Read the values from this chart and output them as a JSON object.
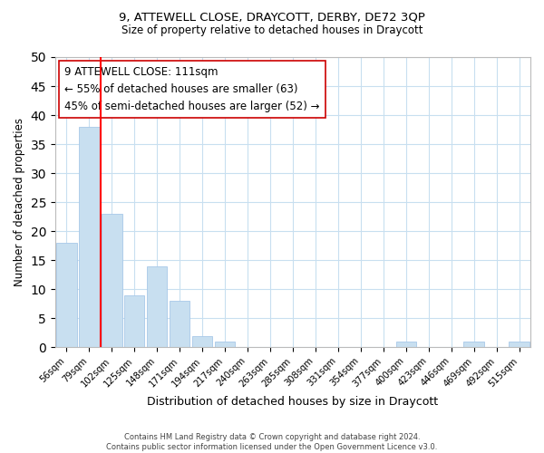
{
  "title1": "9, ATTEWELL CLOSE, DRAYCOTT, DERBY, DE72 3QP",
  "title2": "Size of property relative to detached houses in Draycott",
  "xlabel": "Distribution of detached houses by size in Draycott",
  "ylabel": "Number of detached properties",
  "bin_labels": [
    "56sqm",
    "79sqm",
    "102sqm",
    "125sqm",
    "148sqm",
    "171sqm",
    "194sqm",
    "217sqm",
    "240sqm",
    "263sqm",
    "285sqm",
    "308sqm",
    "331sqm",
    "354sqm",
    "377sqm",
    "400sqm",
    "423sqm",
    "446sqm",
    "469sqm",
    "492sqm",
    "515sqm"
  ],
  "bar_values": [
    18,
    38,
    23,
    9,
    14,
    8,
    2,
    1,
    0,
    0,
    0,
    0,
    0,
    0,
    0,
    1,
    0,
    0,
    1,
    0,
    1
  ],
  "bar_color": "#c8dff0",
  "bar_edge_color": "#a8c8e8",
  "vline_x": 1.5,
  "vline_color": "red",
  "annotation_title": "9 ATTEWELL CLOSE: 111sqm",
  "annotation_line1": "← 55% of detached houses are smaller (63)",
  "annotation_line2": "45% of semi-detached houses are larger (52) →",
  "annotation_box_color": "#ffffff",
  "annotation_box_edge": "#cc0000",
  "ylim": [
    0,
    50
  ],
  "yticks": [
    0,
    5,
    10,
    15,
    20,
    25,
    30,
    35,
    40,
    45,
    50
  ],
  "footer1": "Contains HM Land Registry data © Crown copyright and database right 2024.",
  "footer2": "Contains public sector information licensed under the Open Government Licence v3.0.",
  "bg_color": "#ffffff",
  "grid_color": "#c8dff0"
}
